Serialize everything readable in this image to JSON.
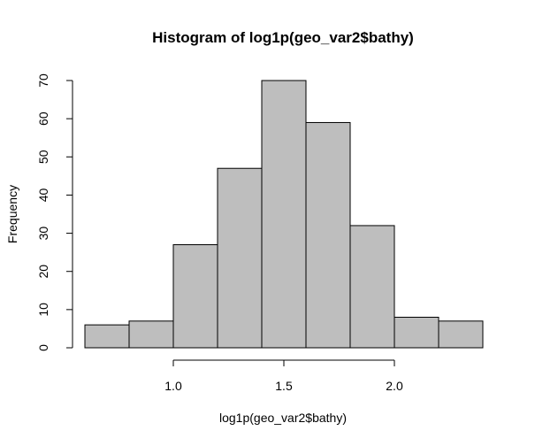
{
  "chart_data": {
    "type": "bar",
    "title": "Histogram of log1p(geo_var2$bathy)",
    "xlabel": "log1p(geo_var2$bathy)",
    "ylabel": "Frequency",
    "bins": [
      {
        "x0": 0.6,
        "x1": 0.8,
        "value": 6
      },
      {
        "x0": 0.8,
        "x1": 1.0,
        "value": 7
      },
      {
        "x0": 1.0,
        "x1": 1.2,
        "value": 27
      },
      {
        "x0": 1.2,
        "x1": 1.4,
        "value": 47
      },
      {
        "x0": 1.4,
        "x1": 1.6,
        "value": 70
      },
      {
        "x0": 1.6,
        "x1": 1.8,
        "value": 59
      },
      {
        "x0": 1.8,
        "x1": 2.0,
        "value": 32
      },
      {
        "x0": 2.0,
        "x1": 2.2,
        "value": 8
      },
      {
        "x0": 2.2,
        "x1": 2.4,
        "value": 7
      }
    ],
    "xticks": [
      {
        "value": 1.0,
        "label": "1.0"
      },
      {
        "value": 1.5,
        "label": "1.5"
      },
      {
        "value": 2.0,
        "label": "2.0"
      }
    ],
    "yticks": [
      {
        "value": 0,
        "label": "0"
      },
      {
        "value": 10,
        "label": "10"
      },
      {
        "value": 20,
        "label": "20"
      },
      {
        "value": 30,
        "label": "30"
      },
      {
        "value": 40,
        "label": "40"
      },
      {
        "value": 50,
        "label": "50"
      },
      {
        "value": 60,
        "label": "60"
      },
      {
        "value": 70,
        "label": "70"
      }
    ],
    "xlim": [
      0.6,
      2.4
    ],
    "ylim": [
      0,
      70
    ],
    "grid": false,
    "bar_color": "#bebebe",
    "edge_color": "#000000"
  }
}
